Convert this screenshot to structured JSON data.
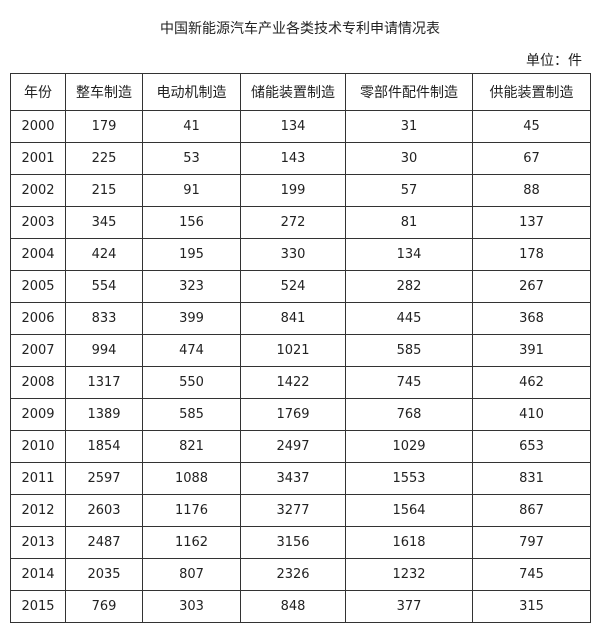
{
  "title": "中国新能源汽车产业各类技术专利申请情况表",
  "unit": "单位：件",
  "table": {
    "headers": [
      "年份",
      "整车制造",
      "电动机制造",
      "储能装置制造",
      "零部件配件制造",
      "供能装置制造"
    ],
    "rows": [
      [
        "2000",
        "179",
        "41",
        "134",
        "31",
        "45"
      ],
      [
        "2001",
        "225",
        "53",
        "143",
        "30",
        "67"
      ],
      [
        "2002",
        "215",
        "91",
        "199",
        "57",
        "88"
      ],
      [
        "2003",
        "345",
        "156",
        "272",
        "81",
        "137"
      ],
      [
        "2004",
        "424",
        "195",
        "330",
        "134",
        "178"
      ],
      [
        "2005",
        "554",
        "323",
        "524",
        "282",
        "267"
      ],
      [
        "2006",
        "833",
        "399",
        "841",
        "445",
        "368"
      ],
      [
        "2007",
        "994",
        "474",
        "1021",
        "585",
        "391"
      ],
      [
        "2008",
        "1317",
        "550",
        "1422",
        "745",
        "462"
      ],
      [
        "2009",
        "1389",
        "585",
        "1769",
        "768",
        "410"
      ],
      [
        "2010",
        "1854",
        "821",
        "2497",
        "1029",
        "653"
      ],
      [
        "2011",
        "2597",
        "1088",
        "3437",
        "1553",
        "831"
      ],
      [
        "2012",
        "2603",
        "1176",
        "3277",
        "1564",
        "867"
      ],
      [
        "2013",
        "2487",
        "1162",
        "3156",
        "1618",
        "797"
      ],
      [
        "2014",
        "2035",
        "807",
        "2326",
        "1232",
        "745"
      ],
      [
        "2015",
        "769",
        "303",
        "848",
        "377",
        "315"
      ]
    ]
  }
}
